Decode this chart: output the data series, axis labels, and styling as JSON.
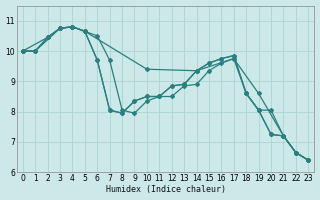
{
  "xlabel": "Humidex (Indice chaleur)",
  "bg_color": "#cce8e8",
  "grid_color": "#aad4d4",
  "line_color": "#2a7f7f",
  "xlim": [
    -0.5,
    23.5
  ],
  "ylim": [
    6,
    11.5
  ],
  "yticks": [
    6,
    7,
    8,
    9,
    10,
    11
  ],
  "xticks": [
    0,
    1,
    2,
    3,
    4,
    5,
    6,
    7,
    8,
    9,
    10,
    11,
    12,
    13,
    14,
    15,
    16,
    17,
    18,
    19,
    20,
    21,
    22,
    23
  ],
  "series": [
    {
      "x": [
        0,
        1,
        2,
        3,
        4,
        5,
        10,
        14,
        17,
        19,
        21,
        22,
        23
      ],
      "y": [
        10.0,
        10.0,
        10.45,
        10.75,
        10.8,
        10.65,
        9.4,
        9.35,
        9.75,
        8.6,
        7.2,
        6.65,
        6.4
      ]
    },
    {
      "x": [
        0,
        2,
        3,
        4,
        5,
        6,
        7,
        8,
        9,
        10,
        11,
        12,
        13,
        14,
        15,
        16,
        17,
        18,
        19,
        20,
        21,
        22,
        23
      ],
      "y": [
        10.0,
        10.45,
        10.75,
        10.8,
        10.65,
        10.5,
        9.7,
        8.05,
        7.95,
        8.35,
        8.5,
        8.5,
        8.85,
        8.9,
        9.35,
        9.6,
        9.75,
        8.6,
        8.05,
        7.25,
        7.2,
        6.65,
        6.4
      ]
    },
    {
      "x": [
        0,
        1,
        2,
        3,
        4,
        5,
        6,
        7,
        8,
        9,
        10,
        11,
        12,
        13,
        14,
        15,
        16,
        17,
        18,
        19,
        20,
        21,
        22,
        23
      ],
      "y": [
        10.0,
        10.0,
        10.45,
        10.75,
        10.8,
        10.65,
        9.7,
        8.05,
        7.95,
        8.35,
        8.5,
        8.5,
        8.85,
        8.9,
        9.35,
        9.6,
        9.75,
        9.85,
        8.6,
        8.05,
        7.25,
        7.2,
        6.65,
        6.4
      ]
    },
    {
      "x": [
        0,
        1,
        3,
        4,
        5,
        6,
        7,
        8,
        9,
        10,
        11,
        12,
        13,
        14,
        15,
        16,
        17,
        18,
        19,
        20,
        21,
        22,
        23
      ],
      "y": [
        10.0,
        10.0,
        10.75,
        10.8,
        10.65,
        9.7,
        8.05,
        7.95,
        8.35,
        8.5,
        8.5,
        8.85,
        8.9,
        9.35,
        9.6,
        9.75,
        9.85,
        8.6,
        8.05,
        8.05,
        7.2,
        6.65,
        6.4
      ]
    }
  ]
}
